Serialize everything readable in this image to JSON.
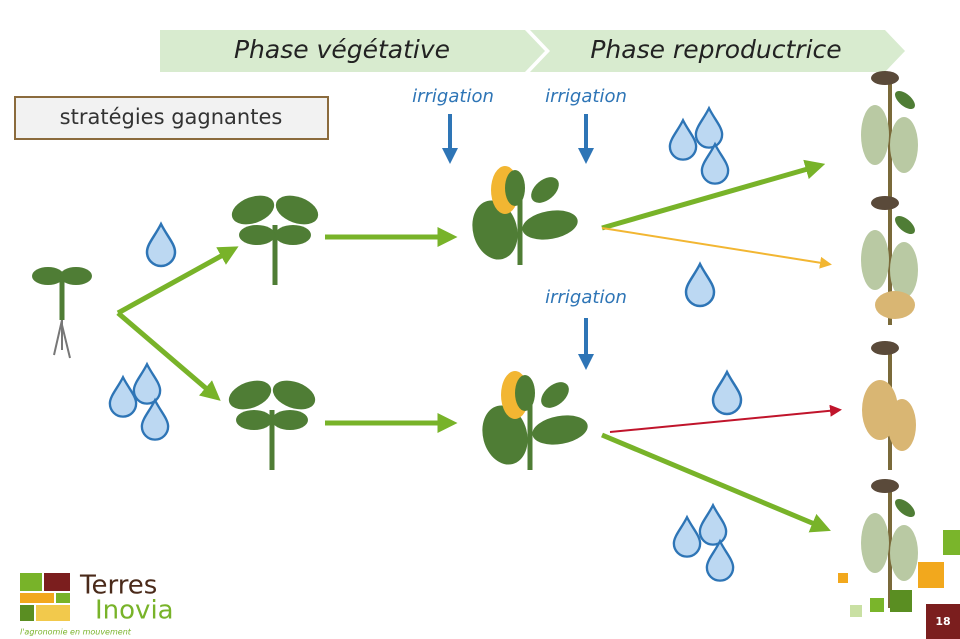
{
  "header": {
    "phases": [
      "Phase végétative",
      "Phase reproductrice"
    ]
  },
  "label": "stratégies gagnantes",
  "irrigation": [
    "irrigation",
    "irrigation",
    "irrigation"
  ],
  "logo": {
    "name": [
      "Terres",
      "Inovia"
    ],
    "tagline": "l'agronomie en mouvement"
  },
  "page_number": "18"
}
